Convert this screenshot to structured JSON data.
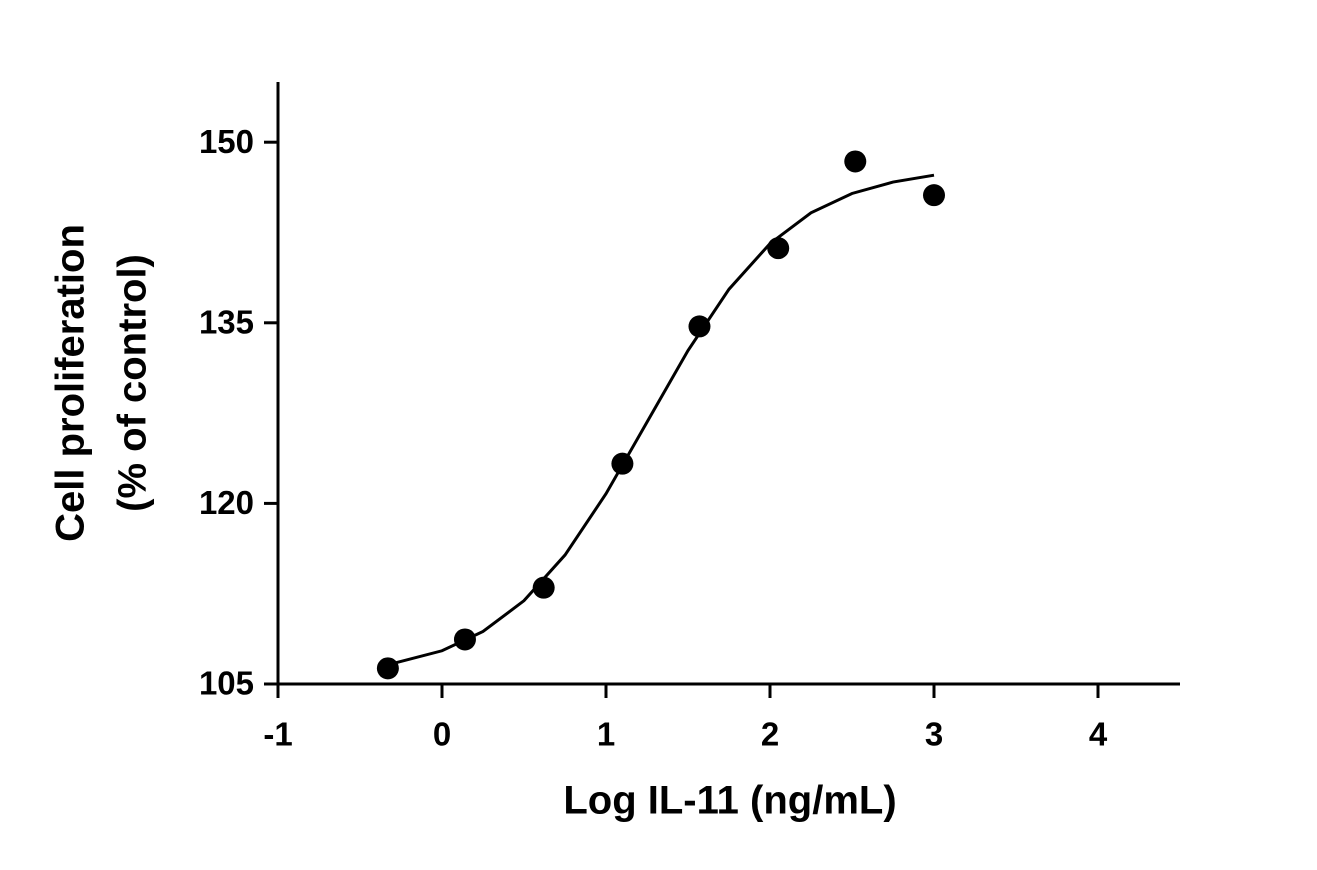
{
  "chart_data": {
    "type": "scatter",
    "x_label": "Log IL-11 (ng/mL)",
    "y_label": [
      "Cell proliferation",
      "(% of control)"
    ],
    "xlim": [
      -1,
      4.5
    ],
    "xticks": [
      -1,
      0,
      1,
      2,
      3,
      4
    ],
    "ylim": [
      105,
      155
    ],
    "yticks": [
      105,
      120,
      135,
      150
    ],
    "series": [
      {
        "kind": "points",
        "color": "#000000",
        "x": [
          -0.33,
          0.14,
          0.62,
          1.1,
          1.57,
          2.05,
          2.52,
          3.0
        ],
        "values": [
          106.3,
          108.7,
          113.0,
          123.3,
          134.7,
          141.2,
          148.4,
          145.6
        ]
      },
      {
        "kind": "fit",
        "color": "#000000",
        "x": [
          -0.33,
          0,
          0.25,
          0.5,
          0.75,
          1.0,
          1.25,
          1.5,
          1.75,
          2.0,
          2.25,
          2.5,
          2.75,
          3.0
        ],
        "values": [
          106.59,
          107.76,
          109.36,
          111.92,
          115.71,
          120.8,
          126.75,
          132.7,
          137.79,
          141.58,
          144.14,
          145.74,
          146.69,
          147.26
        ]
      }
    ]
  }
}
